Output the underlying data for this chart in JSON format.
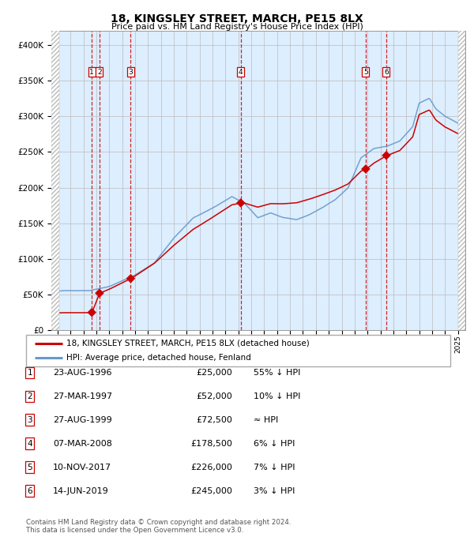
{
  "title": "18, KINGSLEY STREET, MARCH, PE15 8LX",
  "subtitle": "Price paid vs. HM Land Registry's House Price Index (HPI)",
  "sale_dates": [
    "1996-08-23",
    "1997-03-27",
    "1999-08-27",
    "2008-03-07",
    "2017-11-10",
    "2019-06-14"
  ],
  "sale_prices": [
    25000,
    52000,
    72500,
    178500,
    226000,
    245000
  ],
  "sale_labels": [
    "1",
    "2",
    "3",
    "4",
    "5",
    "6"
  ],
  "legend_line1": "18, KINGSLEY STREET, MARCH, PE15 8LX (detached house)",
  "legend_line2": "HPI: Average price, detached house, Fenland",
  "table_rows": [
    [
      "1",
      "23-AUG-1996",
      "£25,000",
      "55% ↓ HPI"
    ],
    [
      "2",
      "27-MAR-1997",
      "£52,000",
      "10% ↓ HPI"
    ],
    [
      "3",
      "27-AUG-1999",
      "£72,500",
      "≈ HPI"
    ],
    [
      "4",
      "07-MAR-2008",
      "£178,500",
      "6% ↓ HPI"
    ],
    [
      "5",
      "10-NOV-2017",
      "£226,000",
      "7% ↓ HPI"
    ],
    [
      "6",
      "14-JUN-2019",
      "£245,000",
      "3% ↓ HPI"
    ]
  ],
  "footnote1": "Contains HM Land Registry data © Crown copyright and database right 2024.",
  "footnote2": "This data is licensed under the Open Government Licence v3.0.",
  "red_line_color": "#cc0000",
  "blue_line_color": "#6699cc",
  "marker_color": "#cc0000",
  "vline_color": "#cc0000",
  "bg_color": "#ddeeff",
  "grid_color": "#bbbbbb",
  "ylim": [
    0,
    420000
  ],
  "yticks": [
    0,
    50000,
    100000,
    150000,
    200000,
    250000,
    300000,
    350000,
    400000
  ],
  "hpi_anchors": {
    "1994.0": 55000,
    "1996.5": 56000,
    "1998.0": 62000,
    "2000.0": 78000,
    "2001.5": 95000,
    "2003.0": 130000,
    "2004.5": 158000,
    "2006.0": 172000,
    "2007.5": 188000,
    "2008.5": 178000,
    "2009.5": 158000,
    "2010.5": 165000,
    "2011.5": 158000,
    "2012.5": 155000,
    "2013.5": 162000,
    "2014.5": 172000,
    "2015.5": 183000,
    "2016.5": 200000,
    "2017.5": 242000,
    "2018.5": 255000,
    "2019.5": 258000,
    "2020.5": 265000,
    "2021.5": 285000,
    "2022.0": 318000,
    "2022.8": 325000,
    "2023.3": 310000,
    "2024.0": 300000,
    "2025.0": 290000
  }
}
